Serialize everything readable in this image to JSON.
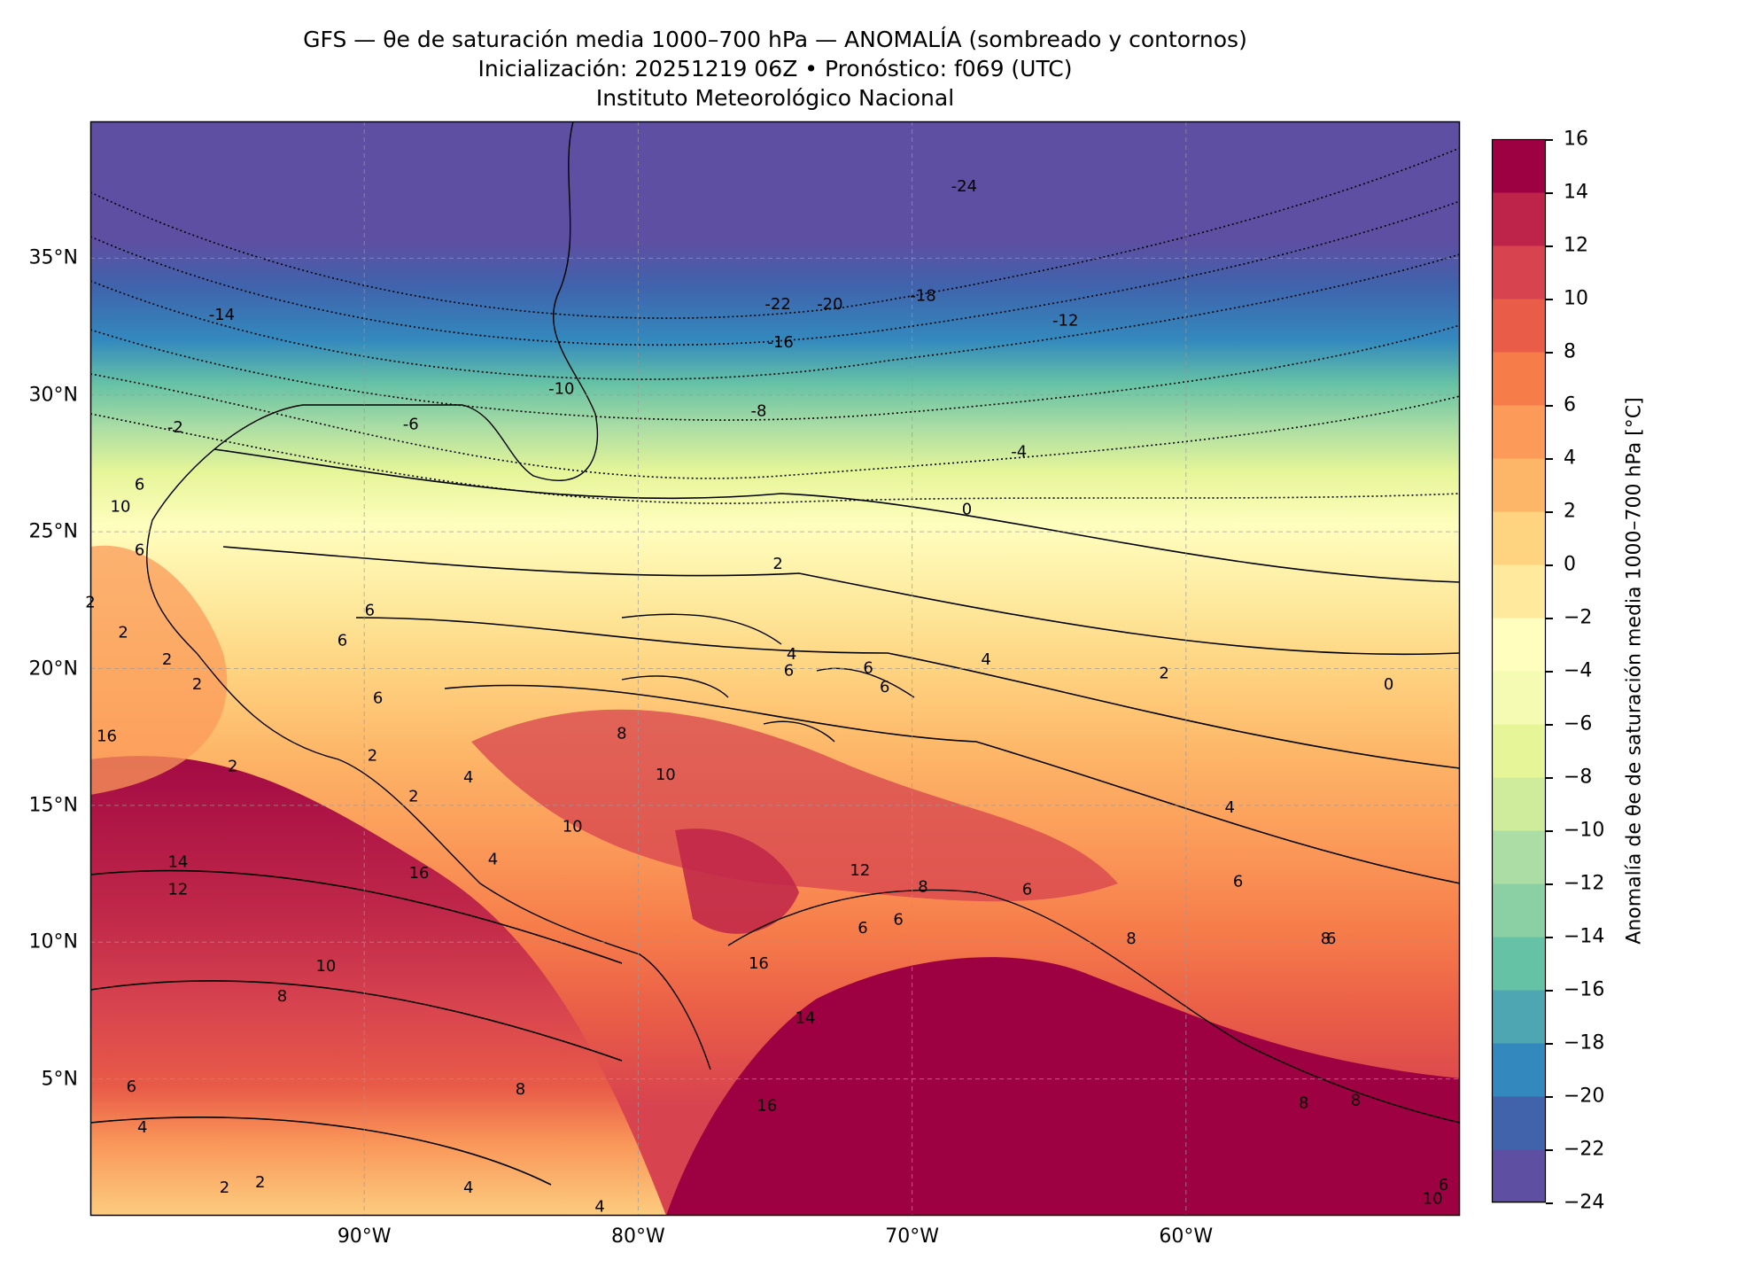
{
  "title": {
    "line1": "GFS — θe de saturación media 1000–700 hPa — ANOMALÍA (sombreado y contornos)",
    "line2": "Inicialización: 20251219 06Z   •   Pronóstico: f069 (UTC)",
    "line3": "Instituto Meteorológico Nacional"
  },
  "map": {
    "lon_range": [
      -100,
      -50
    ],
    "lat_range": [
      0,
      40
    ],
    "lon_ticks": [
      {
        "value": -90,
        "label": "90°W"
      },
      {
        "value": -80,
        "label": "80°W"
      },
      {
        "value": -70,
        "label": "70°W"
      },
      {
        "value": -60,
        "label": "60°W"
      }
    ],
    "lat_ticks": [
      {
        "value": 35,
        "label": "35°N"
      },
      {
        "value": 30,
        "label": "30°N"
      },
      {
        "value": 25,
        "label": "25°N"
      },
      {
        "value": 20,
        "label": "20°N"
      },
      {
        "value": 15,
        "label": "15°N"
      },
      {
        "value": 10,
        "label": "10°N"
      },
      {
        "value": 5,
        "label": "5°N"
      }
    ],
    "gridlines": true,
    "contour_labels": [
      {
        "text": "-24",
        "lon": -68.1,
        "lat": 37.6
      },
      {
        "text": "-22",
        "lon": -74.9,
        "lat": 33.3
      },
      {
        "text": "-20",
        "lon": -73.0,
        "lat": 33.3
      },
      {
        "text": "-18",
        "lon": -69.6,
        "lat": 33.6
      },
      {
        "text": "-16",
        "lon": -74.8,
        "lat": 31.9
      },
      {
        "text": "-14",
        "lon": -95.2,
        "lat": 32.9
      },
      {
        "text": "-12",
        "lon": -64.4,
        "lat": 32.7
      },
      {
        "text": "-10",
        "lon": -82.8,
        "lat": 30.2
      },
      {
        "text": "-8",
        "lon": -75.6,
        "lat": 29.4
      },
      {
        "text": "-6",
        "lon": -88.3,
        "lat": 28.9
      },
      {
        "text": "-4",
        "lon": -66.1,
        "lat": 27.9
      },
      {
        "text": "-2",
        "lon": -96.9,
        "lat": 28.8
      },
      {
        "text": "0",
        "lon": -68.0,
        "lat": 25.8
      },
      {
        "text": "2",
        "lon": -74.9,
        "lat": 23.8
      },
      {
        "text": "2",
        "lon": -60.8,
        "lat": 19.8
      },
      {
        "text": "0",
        "lon": -52.6,
        "lat": 19.4
      },
      {
        "text": "4",
        "lon": -74.4,
        "lat": 20.5
      },
      {
        "text": "4",
        "lon": -67.3,
        "lat": 20.3
      },
      {
        "text": "6",
        "lon": -89.8,
        "lat": 22.1
      },
      {
        "text": "6",
        "lon": -90.8,
        "lat": 21.0
      },
      {
        "text": "6",
        "lon": -74.5,
        "lat": 19.9
      },
      {
        "text": "6",
        "lon": -71.6,
        "lat": 20.0
      },
      {
        "text": "6",
        "lon": -71.0,
        "lat": 19.3
      },
      {
        "text": "6",
        "lon": -89.5,
        "lat": 18.9
      },
      {
        "text": "6",
        "lon": -98.2,
        "lat": 24.3
      },
      {
        "text": "6",
        "lon": -98.2,
        "lat": 26.7
      },
      {
        "text": "10",
        "lon": -98.9,
        "lat": 25.9
      },
      {
        "text": "2",
        "lon": -97.2,
        "lat": 20.3
      },
      {
        "text": "2",
        "lon": -96.1,
        "lat": 19.4
      },
      {
        "text": "16",
        "lon": -99.4,
        "lat": 17.5
      },
      {
        "text": "2",
        "lon": -94.8,
        "lat": 16.4
      },
      {
        "text": "2",
        "lon": -89.7,
        "lat": 16.8
      },
      {
        "text": "2",
        "lon": -88.2,
        "lat": 15.3
      },
      {
        "text": "4",
        "lon": -86.2,
        "lat": 16.0
      },
      {
        "text": "4",
        "lon": -85.3,
        "lat": 13.0
      },
      {
        "text": "8",
        "lon": -80.6,
        "lat": 17.6
      },
      {
        "text": "10",
        "lon": -79.0,
        "lat": 16.1
      },
      {
        "text": "10",
        "lon": -82.4,
        "lat": 14.2
      },
      {
        "text": "14",
        "lon": -96.8,
        "lat": 12.9
      },
      {
        "text": "16",
        "lon": -88.0,
        "lat": 12.5
      },
      {
        "text": "12",
        "lon": -96.8,
        "lat": 11.9
      },
      {
        "text": "12",
        "lon": -71.9,
        "lat": 12.6
      },
      {
        "text": "8",
        "lon": -69.6,
        "lat": 12.0
      },
      {
        "text": "6",
        "lon": -65.8,
        "lat": 11.9
      },
      {
        "text": "6",
        "lon": -70.5,
        "lat": 10.8
      },
      {
        "text": "6",
        "lon": -71.8,
        "lat": 10.5
      },
      {
        "text": "8",
        "lon": -62.0,
        "lat": 10.1
      },
      {
        "text": "10",
        "lon": -91.4,
        "lat": 9.1
      },
      {
        "text": "8",
        "lon": -93.0,
        "lat": 8.0
      },
      {
        "text": "16",
        "lon": -75.6,
        "lat": 9.2
      },
      {
        "text": "14",
        "lon": -73.9,
        "lat": 7.2
      },
      {
        "text": "16",
        "lon": -75.3,
        "lat": 4.0
      },
      {
        "text": "8",
        "lon": -84.3,
        "lat": 4.6
      },
      {
        "text": "6",
        "lon": -98.5,
        "lat": 4.7
      },
      {
        "text": "4",
        "lon": -98.1,
        "lat": 3.2
      },
      {
        "text": "4",
        "lon": -86.2,
        "lat": 1.0
      },
      {
        "text": "2",
        "lon": -93.8,
        "lat": 1.2
      },
      {
        "text": "2",
        "lon": -95.1,
        "lat": 1.0
      },
      {
        "text": "4",
        "lon": -81.4,
        "lat": 0.3
      },
      {
        "text": "8",
        "lon": -55.7,
        "lat": 4.1
      },
      {
        "text": "8",
        "lon": -54.9,
        "lat": 10.1
      },
      {
        "text": "6",
        "lon": -54.7,
        "lat": 10.1
      },
      {
        "text": "6",
        "lon": -50.6,
        "lat": 1.1
      },
      {
        "text": "10",
        "lon": -51.0,
        "lat": 0.6
      },
      {
        "text": "2",
        "lon": -100.0,
        "lat": 22.4
      },
      {
        "text": "2",
        "lon": -98.8,
        "lat": 21.3
      },
      {
        "text": "4",
        "lon": -58.4,
        "lat": 14.9
      },
      {
        "text": "6",
        "lon": -58.1,
        "lat": 12.2
      },
      {
        "text": "8",
        "lon": -53.8,
        "lat": 4.2
      }
    ]
  },
  "colorbar": {
    "label": "Anomalía de θe de saturación media 1000–700 hPa [°C]",
    "min": -24,
    "max": 16,
    "step": 2,
    "tick_labels": [
      "16",
      "14",
      "12",
      "10",
      "8",
      "6",
      "4",
      "2",
      "0",
      "−2",
      "−4",
      "−6",
      "−8",
      "−10",
      "−12",
      "−14",
      "−16",
      "−18",
      "−20",
      "−22",
      "−24"
    ],
    "colors": [
      "#5e4fa2",
      "#4063ac",
      "#3389bd",
      "#4ea6b3",
      "#66c2a5",
      "#8bd0a4",
      "#abdda4",
      "#cfec9d",
      "#e6f598",
      "#f5fbb2",
      "#fffebe",
      "#fee99d",
      "#fed481",
      "#fdb567",
      "#fb9a59",
      "#f67c4a",
      "#e95c47",
      "#d7434f",
      "#be2449",
      "#9e0142"
    ]
  }
}
